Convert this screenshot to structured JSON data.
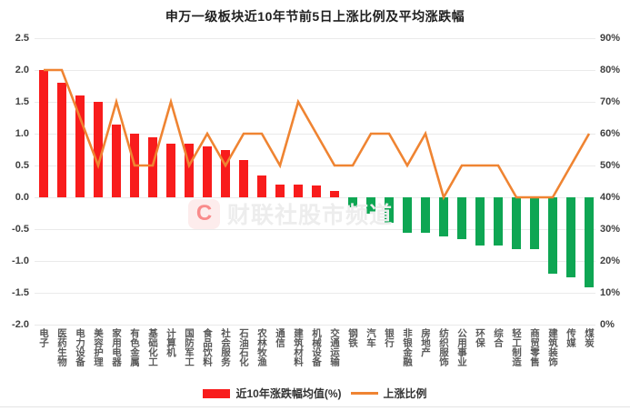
{
  "title": "申万一级板块近10年节前5日上涨比例及平均涨跌幅",
  "legend": {
    "bar_label": "近10年涨跌幅均值(%)",
    "line_label": "上涨比例"
  },
  "watermark": {
    "logo_letter": "C",
    "text": "财联社股市频道"
  },
  "axes": {
    "left_ticks": [
      "2.5",
      "2.0",
      "1.5",
      "1.0",
      "0.5",
      "0.0",
      "-0.5",
      "-1.0",
      "-1.5",
      "-2.0"
    ],
    "right_ticks": [
      "90%",
      "80%",
      "70%",
      "60%",
      "50%",
      "40%",
      "30%",
      "20%",
      "10%",
      "0%"
    ]
  },
  "colors": {
    "positive_bar": "#f81c1c",
    "negative_bar": "#0ea653",
    "line": "#ef8432",
    "grid": "#eaeaea",
    "tick_text": "#404040",
    "category_text": "#595959",
    "title_text": "#1f1f1f"
  },
  "chart_data": {
    "type": "combo-bar-line",
    "title": "申万一级板块近10年节前5日上涨比例及平均涨跌幅",
    "grid": true,
    "legend_position": "bottom",
    "categories": [
      "电子",
      "医药生物",
      "电力设备",
      "美容护理",
      "家用电器",
      "有色金属",
      "基础化工",
      "计算机",
      "国防军工",
      "食品饮料",
      "社会服务",
      "石油石化",
      "农林牧渔",
      "通信",
      "建筑材料",
      "机械设备",
      "交通运输",
      "钢铁",
      "汽车",
      "银行",
      "非银金融",
      "房地产",
      "纺织服饰",
      "公用事业",
      "环保",
      "综合",
      "轻工制造",
      "商贸零售",
      "建筑装饰",
      "传媒",
      "煤炭"
    ],
    "series": [
      {
        "name": "近10年涨跌幅均值(%)",
        "type": "bar",
        "axis": "left",
        "values": [
          2.0,
          1.8,
          1.6,
          1.5,
          1.15,
          1.0,
          0.95,
          0.85,
          0.85,
          0.8,
          0.75,
          0.58,
          0.35,
          0.2,
          0.2,
          0.18,
          0.1,
          -0.15,
          -0.25,
          -0.4,
          -0.55,
          -0.55,
          -0.62,
          -0.66,
          -0.75,
          -0.75,
          -0.82,
          -0.82,
          -1.2,
          -1.25,
          -1.42
        ]
      },
      {
        "name": "上涨比例",
        "type": "line",
        "axis": "right",
        "unit": "%",
        "values": [
          80,
          80,
          65,
          50,
          70,
          50,
          50,
          70,
          50,
          60,
          50,
          60,
          60,
          50,
          70,
          60,
          50,
          50,
          60,
          60,
          50,
          60,
          40,
          50,
          50,
          50,
          40,
          40,
          40,
          50,
          60
        ]
      }
    ],
    "left_axis": {
      "min": -2.0,
      "max": 2.5,
      "step": 0.5
    },
    "right_axis": {
      "min": 0,
      "max": 90,
      "step": 10,
      "unit": "%"
    }
  }
}
